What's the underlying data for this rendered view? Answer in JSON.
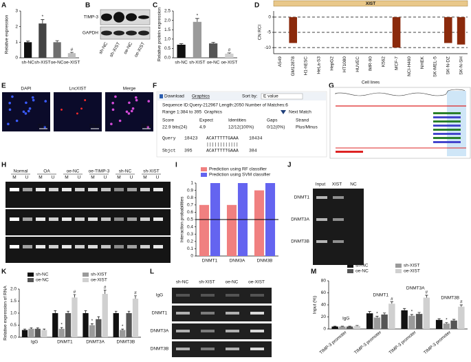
{
  "chart_data": [
    {
      "type": "bar",
      "categories": [
        "sh-NC",
        "sh-XIST",
        "oe-NC",
        "oe-XIST"
      ],
      "values": [
        1.0,
        2.2,
        1.0,
        0.3
      ],
      "errors": [
        0.07,
        0.25,
        0.1,
        0.05
      ],
      "sig": [
        null,
        "*",
        null,
        "#"
      ],
      "colors": [
        "#111111",
        "#444444",
        "#6e6e6e",
        "#bdbdbd"
      ],
      "ylabel": "Relative expression",
      "ylim": [
        0,
        3
      ],
      "yticks": [
        0,
        1,
        2,
        3
      ]
    },
    {
      "type": "bar",
      "categories": [
        "sh-NC",
        "sh-XIST",
        "oe-NC",
        "oe-XIST"
      ],
      "values": [
        0.7,
        1.92,
        0.77,
        0.22
      ],
      "errors": [
        0.05,
        0.18,
        0.06,
        0.04
      ],
      "sig": [
        null,
        "*",
        null,
        "#"
      ],
      "colors": [
        "#111111",
        "#9a9a9a",
        "#555555",
        "#d0d0d0"
      ],
      "ylabel": "Relative protein expression",
      "ylim": [
        0,
        2.5
      ],
      "yticks": [
        {
          "value": 0,
          "label": "0.0"
        },
        0.5,
        {
          "value": 1,
          "label": "1.0"
        },
        1.5,
        {
          "value": 2,
          "label": "2.0"
        },
        2.5
      ]
    },
    {
      "type": "bar",
      "title": "XIST",
      "xlabel": "Cell lines",
      "ylabel": "CN RCI",
      "categories": [
        "A549",
        "GM12878",
        "H1-hESC",
        "HeLa-S3",
        "HepG2",
        "HT1080",
        "HUVEC",
        "IMR-90",
        "K562",
        "MCF-7",
        "NCI-H460",
        "NHEK",
        "SK-MEL-5",
        "SK-N-DZ",
        "SK-N-SH"
      ],
      "values": [
        null,
        -8.5,
        null,
        null,
        null,
        null,
        null,
        null,
        null,
        -10,
        null,
        null,
        null,
        -8.5,
        -9
      ],
      "color": "#8b2a0c",
      "ylim": [
        -12,
        2
      ],
      "yticks": [
        0,
        -5,
        -10
      ],
      "grid": "dashed"
    },
    {
      "type": "bar",
      "ylabel": "Interaction probabilities",
      "categories": [
        "DNMT1",
        "DNM3A",
        "DNM3B"
      ],
      "series": [
        {
          "name": "Prediction using RF classifier",
          "color": "#f08080",
          "values": [
            0.7,
            0.7,
            0.9
          ]
        },
        {
          "name": "Prediction using SVM classifier",
          "color": "#6464f0",
          "values": [
            1.0,
            1.0,
            1.0
          ]
        }
      ],
      "ylim": [
        0,
        1
      ],
      "yticks": [
        0,
        0.1,
        0.2,
        0.3,
        0.4,
        0.5,
        0.6,
        0.7,
        0.8,
        0.9,
        1
      ],
      "reference_line": 0.5
    },
    {
      "type": "bar",
      "ylabel": "Relative expression of RNA",
      "categories": [
        "IgG",
        "DNMT1",
        "DNMT3A",
        "DNMT3B"
      ],
      "series": [
        {
          "name": "sh-NC",
          "color": "#111111",
          "values": [
            0.3,
            1.0,
            1.0,
            1.0
          ],
          "errors": [
            0.04,
            0.1,
            0.1,
            0.08
          ]
        },
        {
          "name": "sh-XIST",
          "color": "#9a9a9a",
          "values": [
            0.35,
            0.35,
            0.5,
            0.3
          ],
          "errors": [
            0.04,
            0.05,
            0.06,
            0.04
          ],
          "sig": [
            null,
            "*",
            "*",
            "*"
          ]
        },
        {
          "name": "oe-NC",
          "color": "#555555",
          "values": [
            0.35,
            1.0,
            0.75,
            1.0
          ],
          "errors": [
            0.04,
            0.08,
            0.1,
            0.08
          ]
        },
        {
          "name": "oe-XIST",
          "color": "#d0d0d0",
          "values": [
            0.3,
            1.65,
            1.8,
            1.6
          ],
          "errors": [
            0.04,
            0.12,
            0.15,
            0.12
          ],
          "sig": [
            null,
            "#",
            "#",
            "#"
          ]
        }
      ],
      "ylim": [
        0,
        2
      ],
      "yticks": [
        {
          "value": 0,
          "label": "0.0"
        },
        0.5,
        {
          "value": 1,
          "label": "1.0"
        },
        1.5,
        {
          "value": 2,
          "label": "2.0"
        }
      ]
    },
    {
      "type": "bar",
      "ylabel": "Input (%)",
      "categories": [
        "TIMP-3 promoter",
        "TIMP-3 promoter",
        "TIMP-3 promoter",
        "TIMP-3 promoter"
      ],
      "group_labels": [
        "IgG",
        "DNMT1",
        "DNMT3A",
        "DNMT3B"
      ],
      "series": [
        {
          "name": "sh-NC",
          "color": "#111111",
          "values": [
            4,
            26,
            31,
            15
          ],
          "errors": [
            0.6,
            3,
            3,
            2
          ]
        },
        {
          "name": "sh-XIST",
          "color": "#9a9a9a",
          "values": [
            4,
            19,
            22,
            9
          ],
          "errors": [
            0.6,
            2,
            2,
            1.5
          ],
          "sig": [
            null,
            "*",
            "*",
            "*"
          ]
        },
        {
          "name": "oe-NC",
          "color": "#555555",
          "values": [
            4,
            24,
            25,
            14
          ],
          "errors": [
            0.6,
            2.5,
            2.5,
            2
          ]
        },
        {
          "name": "oe-XIST",
          "color": "#d0d0d0",
          "values": [
            5,
            42,
            52,
            37
          ],
          "errors": [
            0.8,
            3,
            4,
            3
          ],
          "sig": [
            null,
            "#",
            "#",
            "#"
          ]
        }
      ],
      "ylim": [
        0,
        80
      ],
      "yticks": [
        0,
        20,
        40,
        60,
        80
      ]
    }
  ],
  "panel_labels": [
    "A",
    "B",
    "C",
    "D",
    "E",
    "F",
    "G",
    "H",
    "I",
    "J",
    "K",
    "L",
    "M"
  ],
  "blot_B": {
    "rows": [
      "TIMP-3",
      "GAPDH"
    ],
    "columns": [
      "sh-NC",
      "sh-XIST",
      "oe-NC",
      "oe-XIST"
    ]
  },
  "fish_E": {
    "channels": [
      "DAPI",
      "LncXIST",
      "Merge"
    ],
    "scale_bar": "20μm"
  },
  "blast_F": {
    "download": "Download",
    "graphics": "Graphics",
    "sort_by": "Sort by:",
    "sort_value": "E value",
    "sequence": "Sequence ID:Query-212967 Length:2050 Number of Matches:6",
    "range": "Range 1:384 to 395",
    "range_link": "Graphics",
    "next": "Next Match",
    "headers": [
      "Score",
      "Expect",
      "Identities",
      "Gaps",
      "Strand"
    ],
    "row": [
      "22.9 bits(24)",
      "4.9",
      "12/12(100%)",
      "0/12(0%)",
      "Plus/Minus"
    ],
    "query": [
      "Query",
      "18423",
      "ACATTTTTGAAA",
      "18434"
    ],
    "match": "||||||||||||",
    "sbjct": [
      "Sbjct",
      "395",
      "ACATTTTTGAAA",
      "384"
    ]
  },
  "gel_H": {
    "columns": [
      "Normal",
      "OA",
      "oe-NC",
      "oe-TIMP-3",
      "sh-NC",
      "sh-XIST"
    ],
    "lanes": [
      "M",
      "U"
    ]
  },
  "gel_J": {
    "columns": [
      "Input",
      "XIST",
      "NC"
    ],
    "rows": [
      "DNMT1",
      "DNMT3A",
      "DNMT3B"
    ]
  },
  "gel_L": {
    "columns": [
      "sh-NC",
      "sh-XIST",
      "oe-NC",
      "oe-XIST"
    ],
    "rows": [
      "IgG",
      "DNMT1",
      "DNMT3A",
      "DNMT3B"
    ]
  }
}
